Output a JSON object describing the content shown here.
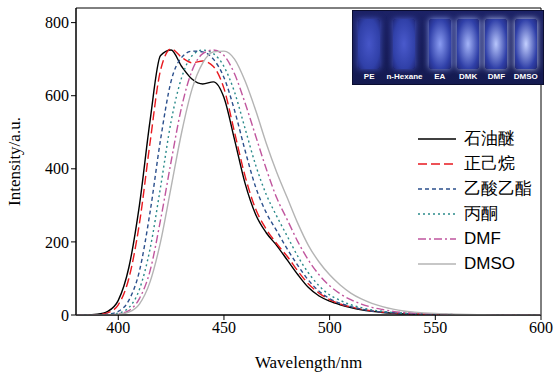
{
  "chart_data": {
    "type": "line",
    "x_label": "Wavelength/nm",
    "y_label": "Intensity/a.u.",
    "xlim": [
      380,
      600
    ],
    "xticks": [
      400,
      450,
      500,
      550,
      600
    ],
    "ylim": [
      0,
      840
    ],
    "yticks": [
      0,
      200,
      400,
      600,
      800
    ],
    "grid": false,
    "legend": "right",
    "annotations": [
      "PE",
      "n-Hexane",
      "EA",
      "DMK",
      "DMF",
      "DMSO"
    ],
    "x": [
      380,
      385,
      390,
      395,
      400,
      405,
      410,
      415,
      420,
      425,
      430,
      435,
      440,
      445,
      450,
      455,
      460,
      465,
      470,
      475,
      480,
      485,
      490,
      495,
      500,
      505,
      510,
      515,
      520,
      525,
      530,
      535,
      540,
      550,
      560,
      570,
      580,
      590,
      600
    ],
    "series": [
      {
        "name": "石油醚",
        "color": "#000000",
        "line_style": "solid",
        "values": [
          0,
          0,
          2,
          10,
          40,
          130,
          300,
          530,
          710,
          725,
          680,
          645,
          632,
          638,
          595,
          480,
          360,
          275,
          225,
          190,
          150,
          110,
          75,
          52,
          38,
          28,
          20,
          14,
          10,
          7,
          5,
          3,
          2,
          1,
          0,
          0,
          0,
          0,
          0
        ]
      },
      {
        "name": "正己烷",
        "color": "#e8191f",
        "line_style": "dashed",
        "values": [
          0,
          0,
          1,
          6,
          28,
          100,
          250,
          470,
          670,
          728,
          705,
          690,
          695,
          680,
          620,
          500,
          380,
          290,
          235,
          195,
          160,
          120,
          85,
          60,
          42,
          30,
          22,
          16,
          11,
          8,
          6,
          4,
          3,
          1,
          0,
          0,
          0,
          0,
          0
        ]
      },
      {
        "name": "乙酸乙酯",
        "color": "#2b4f8c",
        "line_style": "short_dashed",
        "values": [
          0,
          0,
          0,
          2,
          10,
          40,
          120,
          280,
          480,
          640,
          705,
          722,
          720,
          700,
          650,
          560,
          450,
          350,
          280,
          230,
          180,
          135,
          95,
          65,
          45,
          32,
          23,
          16,
          11,
          8,
          6,
          4,
          3,
          1,
          0,
          0,
          0,
          0,
          0
        ]
      },
      {
        "name": "丙酮",
        "color": "#2a8a8a",
        "line_style": "dotted",
        "values": [
          0,
          0,
          0,
          1,
          5,
          20,
          70,
          180,
          350,
          530,
          650,
          710,
          725,
          715,
          680,
          610,
          510,
          410,
          330,
          270,
          215,
          160,
          115,
          80,
          55,
          40,
          28,
          20,
          14,
          10,
          7,
          5,
          3,
          2,
          1,
          0,
          0,
          0,
          0
        ]
      },
      {
        "name": "DMF",
        "color": "#c0569e",
        "line_style": "dashdot",
        "values": [
          0,
          0,
          0,
          0,
          3,
          12,
          45,
          120,
          260,
          420,
          570,
          670,
          715,
          725,
          710,
          660,
          580,
          490,
          400,
          320,
          260,
          200,
          150,
          110,
          80,
          58,
          42,
          30,
          21,
          15,
          10,
          7,
          5,
          3,
          1,
          0,
          0,
          0,
          0
        ]
      },
      {
        "name": "DMSO",
        "color": "#b4b4b4",
        "line_style": "solid",
        "values": [
          0,
          0,
          0,
          0,
          2,
          8,
          30,
          90,
          200,
          350,
          500,
          620,
          690,
          720,
          722,
          700,
          640,
          560,
          470,
          390,
          320,
          250,
          190,
          145,
          110,
          82,
          60,
          44,
          32,
          23,
          16,
          11,
          8,
          4,
          2,
          1,
          0,
          0,
          0
        ]
      }
    ]
  }
}
